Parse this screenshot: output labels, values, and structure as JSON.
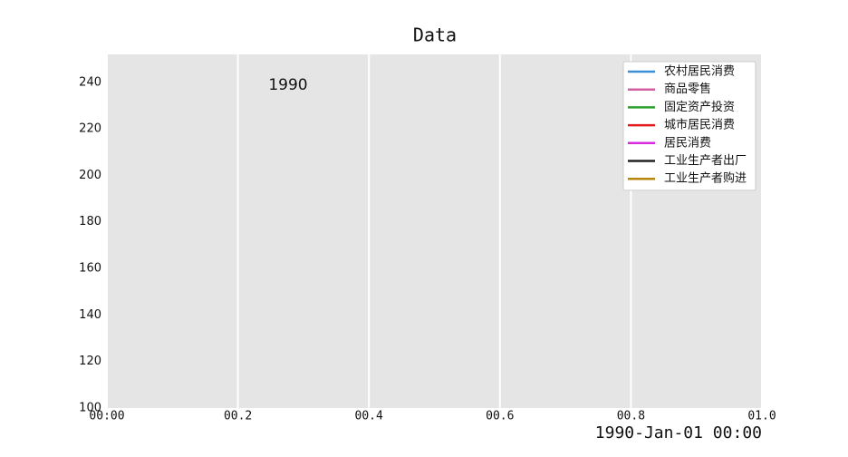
{
  "chart_data": {
    "type": "line",
    "title": "Data",
    "x": [],
    "series": [
      {
        "name": "农村居民消费",
        "color": "#3a8fd6",
        "values": []
      },
      {
        "name": "商品零售",
        "color": "#d45fa0",
        "values": []
      },
      {
        "name": "固定资产投资",
        "color": "#2ca02c",
        "values": []
      },
      {
        "name": "城市居民消费",
        "color": "#e31a1c",
        "values": []
      },
      {
        "name": "居民消费",
        "color": "#d62ae0",
        "values": []
      },
      {
        "name": "工业生产者出厂",
        "color": "#222222",
        "values": []
      },
      {
        "name": "工业生产者购进",
        "color": "#b8860b",
        "values": []
      }
    ],
    "xlim": [
      0,
      1
    ],
    "xticks": [
      {
        "value": 0,
        "label": "00:00"
      },
      {
        "value": 0.2,
        "label": "00.2"
      },
      {
        "value": 0.4,
        "label": "00.4"
      },
      {
        "value": 0.6,
        "label": "00.6"
      },
      {
        "value": 0.8,
        "label": "00.8"
      },
      {
        "value": 1,
        "label": "01.0"
      }
    ],
    "ylim": [
      100,
      252
    ],
    "yticks": [
      100,
      120,
      140,
      160,
      180,
      200,
      220,
      240
    ],
    "grid": "x",
    "legend": "upper-right",
    "annotation": "1990",
    "time_label": "1990-Jan-01 00:00"
  }
}
